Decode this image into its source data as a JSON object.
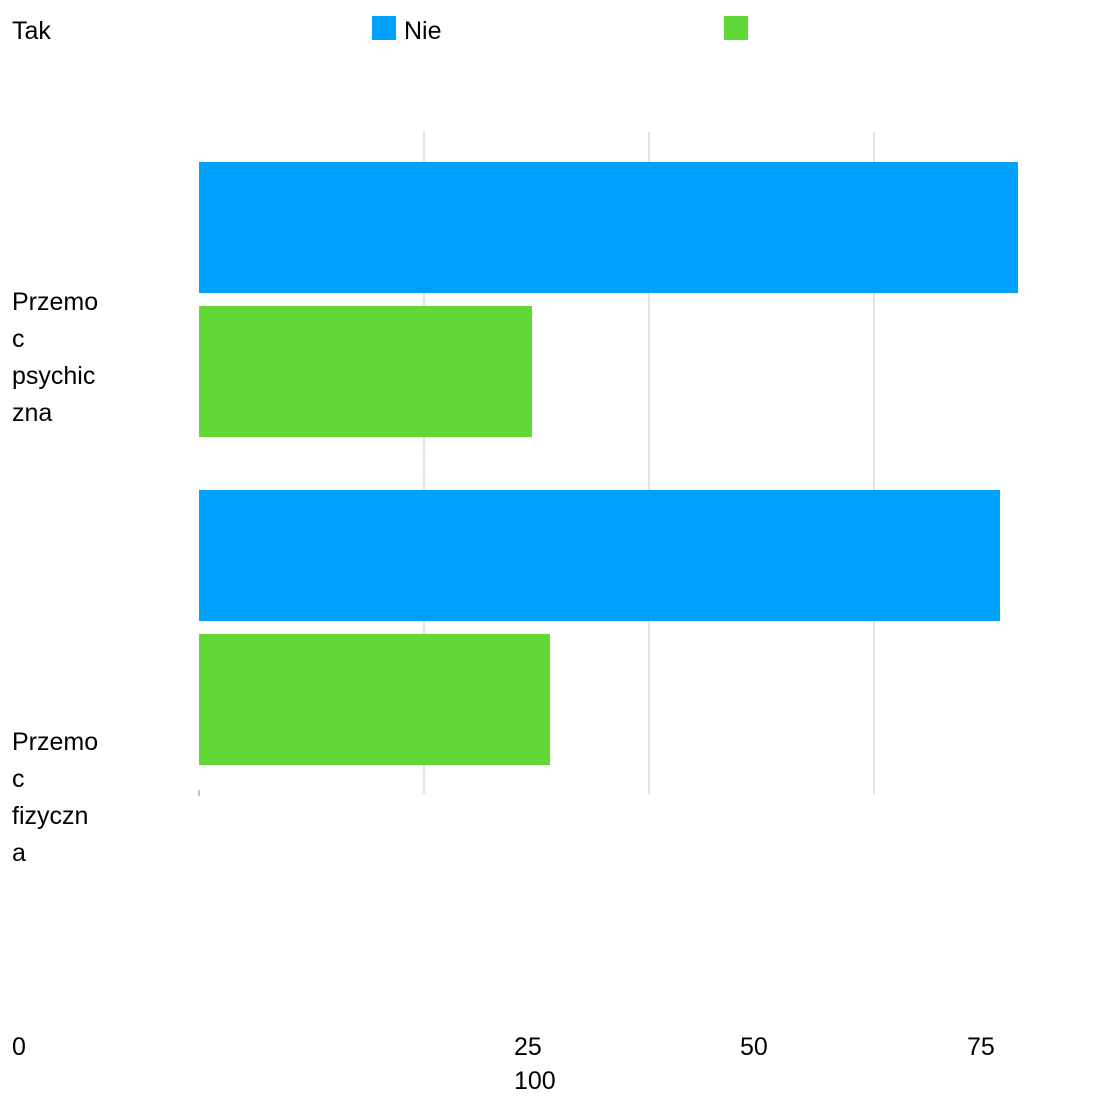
{
  "legend": {
    "items": [
      {
        "label": "Tak",
        "color": ""
      },
      {
        "label": "Nie",
        "color": "#00a2ff"
      },
      {
        "label": "",
        "color": "#61d836"
      }
    ]
  },
  "chart_data": {
    "type": "bar",
    "orientation": "horizontal",
    "categories": [
      "Przemoc psychiczna",
      "Przemoc fizyczna"
    ],
    "category_labels": [
      [
        "Przemo",
        "c",
        "psychic",
        "zna"
      ],
      [
        "Przemo",
        "c",
        "fizyczn",
        "a"
      ]
    ],
    "series": [
      {
        "color": "#00a2ff",
        "values": [
          91,
          89
        ]
      },
      {
        "color": "#61d836",
        "values": [
          37,
          39
        ]
      }
    ],
    "x_ticks": [
      "0",
      "25",
      "50",
      "75",
      "100"
    ],
    "xlim": [
      0,
      100
    ],
    "grid": true,
    "legend_position": "top"
  }
}
